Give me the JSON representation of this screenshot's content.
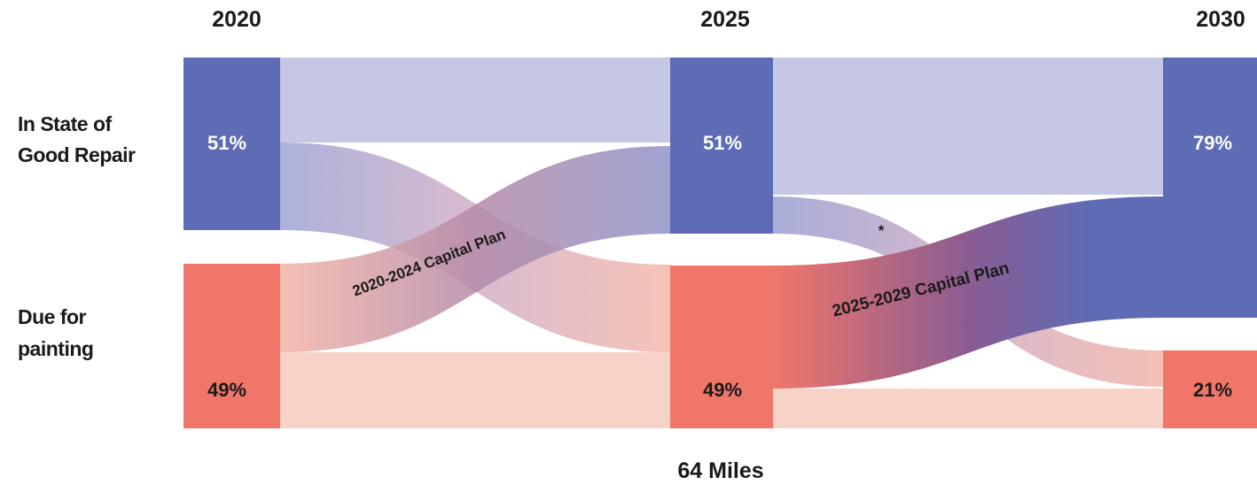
{
  "chart_data": {
    "type": "sankey",
    "unit_label": "64 Miles",
    "years": [
      "2020",
      "2025",
      "2030"
    ],
    "categories": [
      "In State of\nGood Repair",
      "Due for\npainting"
    ],
    "category_lines": [
      [
        "In State of",
        "Good Repair"
      ],
      [
        "Due for",
        "painting"
      ]
    ],
    "nodes": [
      {
        "year": "2020",
        "category": "good",
        "label": "51%",
        "value": 51
      },
      {
        "year": "2020",
        "category": "due",
        "label": "49%",
        "value": 49
      },
      {
        "year": "2025",
        "category": "good",
        "label": "51%",
        "value": 51
      },
      {
        "year": "2025",
        "category": "due",
        "label": "49%",
        "value": 49
      },
      {
        "year": "2030",
        "category": "good",
        "label": "79%",
        "value": 79
      },
      {
        "year": "2030",
        "category": "due",
        "label": "21%",
        "value": 21
      }
    ],
    "flows": [
      {
        "from": "2020",
        "to": "2025",
        "source": "good",
        "target": "good",
        "value": 25
      },
      {
        "from": "2020",
        "to": "2025",
        "source": "good",
        "target": "due",
        "value": 26
      },
      {
        "from": "2020",
        "to": "2025",
        "source": "due",
        "target": "good",
        "value": 26
      },
      {
        "from": "2020",
        "to": "2025",
        "source": "due",
        "target": "due",
        "value": 23
      },
      {
        "from": "2025",
        "to": "2030",
        "source": "good",
        "target": "good",
        "value": 40
      },
      {
        "from": "2025",
        "to": "2030",
        "source": "good",
        "target": "due",
        "value": 11
      },
      {
        "from": "2025",
        "to": "2030",
        "source": "due",
        "target": "good",
        "value": 38
      },
      {
        "from": "2025",
        "to": "2030",
        "source": "due",
        "target": "due",
        "value": 11
      }
    ],
    "annotations": [
      "2020-2024 Capital Plan",
      "2025-2029 Capital Plan",
      "*"
    ],
    "colors": {
      "good": "#5e6bb5",
      "due": "#f0766a",
      "good_light": "#c6c7e4",
      "due_light": "#f6d2c7"
    }
  }
}
